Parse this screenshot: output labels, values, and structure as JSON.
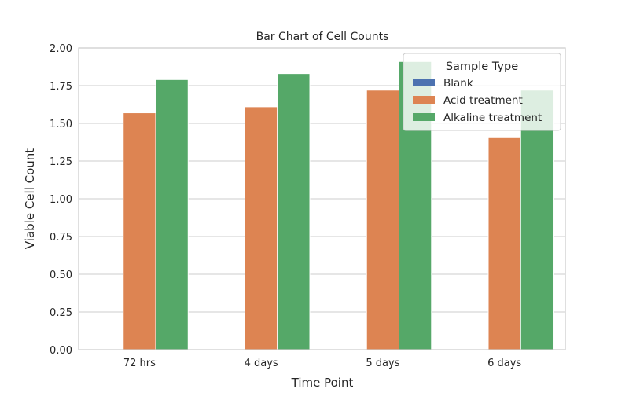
{
  "chart_data": {
    "type": "bar",
    "title": "Bar Chart of Cell Counts",
    "xlabel": "Time Point",
    "ylabel": "Viable Cell Count",
    "categories": [
      "72 hrs",
      "4 days",
      "5 days",
      "6 days"
    ],
    "ylim": [
      0,
      2.0
    ],
    "yticks": [
      0.0,
      0.25,
      0.5,
      0.75,
      1.0,
      1.25,
      1.5,
      1.75,
      2.0
    ],
    "ytick_labels": [
      "0.00",
      "0.25",
      "0.50",
      "0.75",
      "1.00",
      "1.25",
      "1.50",
      "1.75",
      "2.00"
    ],
    "grid": "horizontal",
    "legend": {
      "title": "Sample Type",
      "placement": "top-right"
    },
    "series": [
      {
        "name": "Blank",
        "color": "#4c72b0",
        "values": [
          0,
          0,
          0,
          0
        ]
      },
      {
        "name": "Acid treatment",
        "color": "#dd8452",
        "values": [
          1.57,
          1.61,
          1.72,
          1.41
        ]
      },
      {
        "name": "Alkaline treatment",
        "color": "#55a868",
        "values": [
          1.79,
          1.83,
          1.91,
          1.72
        ]
      }
    ]
  }
}
